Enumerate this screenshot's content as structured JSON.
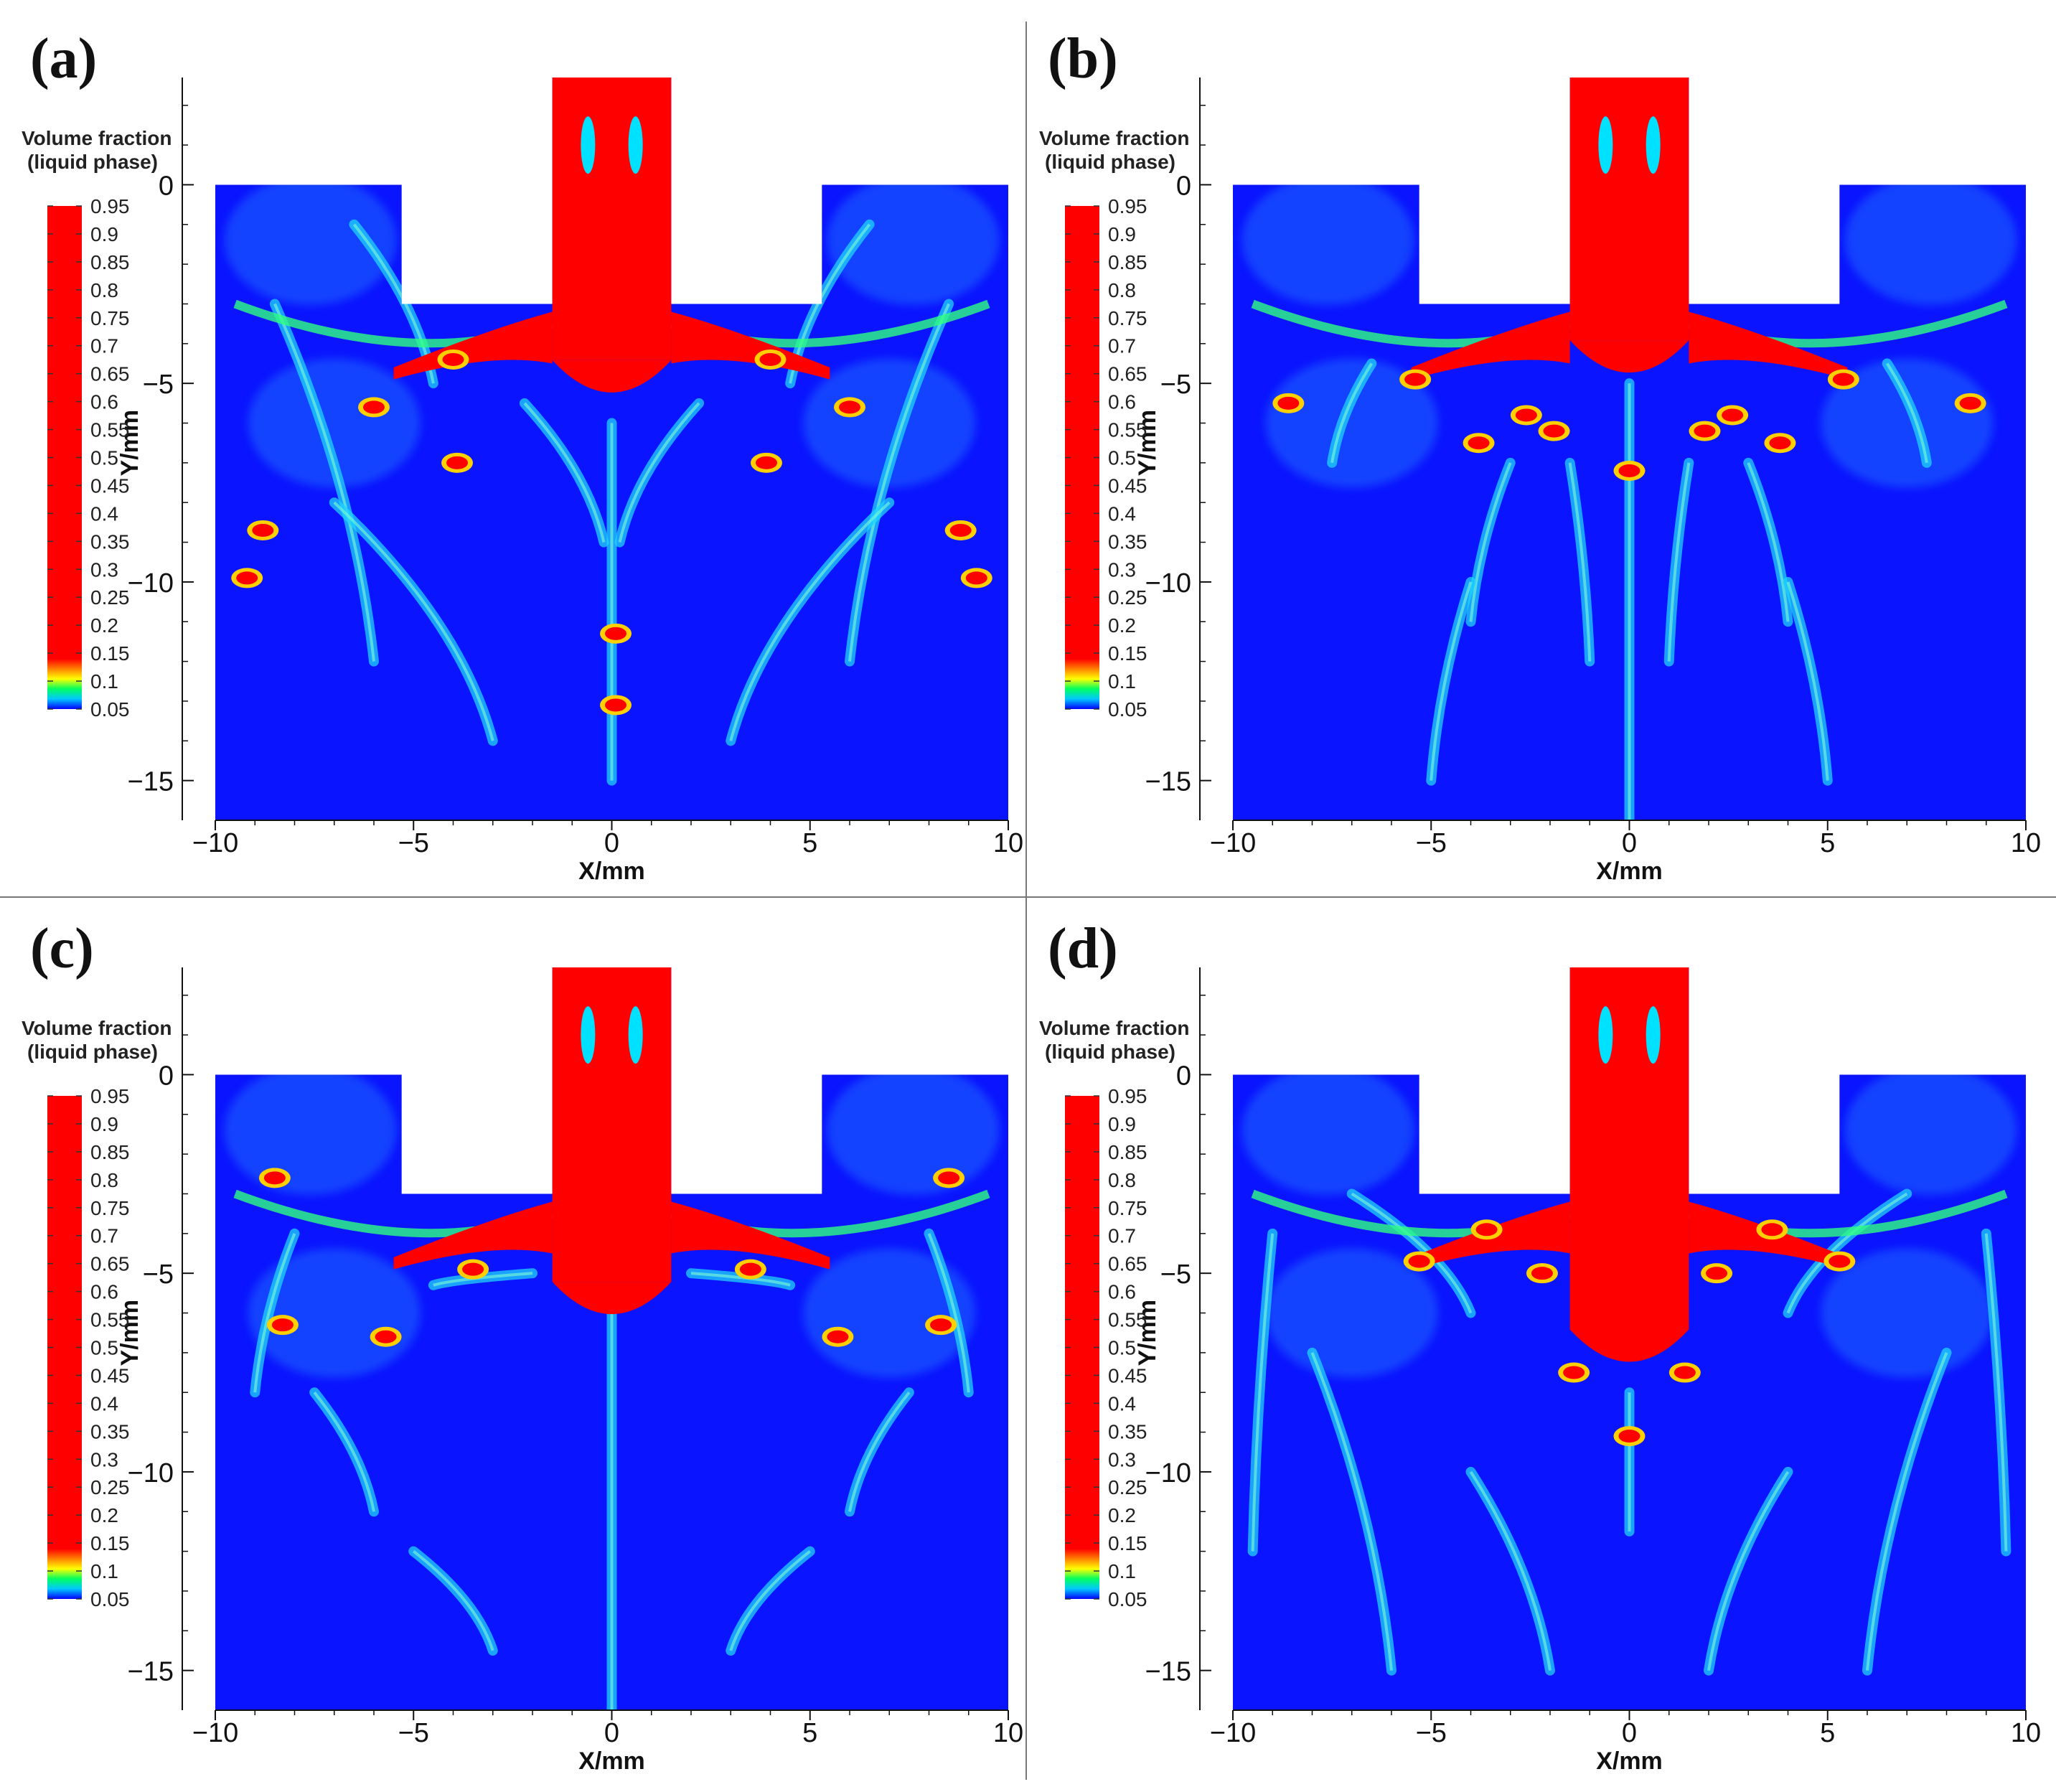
{
  "chart_data": [
    {
      "type": "heatmap",
      "panel_label": "(a)",
      "colorbar_title": [
        "Volume fraction",
        "(liquid phase)"
      ],
      "colorbar_levels": [
        "0.95",
        "0.9",
        "0.85",
        "0.8",
        "0.75",
        "0.7",
        "0.65",
        "0.6",
        "0.55",
        "0.5",
        "0.45",
        "0.4",
        "0.35",
        "0.3",
        "0.25",
        "0.2",
        "0.15",
        "0.1",
        "0.05"
      ],
      "xlabel": "X/mm",
      "ylabel": "Y/mm",
      "xlim": [
        -10,
        10
      ],
      "ylim": [
        -16,
        2.7
      ],
      "xticks": [
        "−10",
        "−5",
        "0",
        "5",
        "10"
      ],
      "yticks": [
        "0",
        "−5",
        "−10",
        "−15"
      ],
      "liquid_core": {
        "x": [
          -1.5,
          1.5
        ],
        "y_bottom": -5.5
      },
      "red_blobs": [
        [
          0.1,
          -13.1
        ],
        [
          0.1,
          -11.3
        ],
        [
          -3.9,
          -7.0
        ],
        [
          3.9,
          -7.0
        ],
        [
          -8.8,
          -8.7
        ],
        [
          8.8,
          -8.7
        ],
        [
          -9.2,
          -9.9
        ],
        [
          9.2,
          -9.9
        ],
        [
          -4.0,
          -4.4
        ],
        [
          4.0,
          -4.4
        ],
        [
          -6.0,
          -5.6
        ],
        [
          6.0,
          -5.6
        ]
      ],
      "filaments": [
        [
          -2.2,
          -5.5,
          -0.2,
          -9
        ],
        [
          2.2,
          -5.5,
          0.2,
          -9
        ],
        [
          0.0,
          -6,
          0.0,
          -15
        ],
        [
          -8.5,
          -3,
          -6,
          -12
        ],
        [
          8.5,
          -3,
          6,
          -12
        ],
        [
          -7,
          -8,
          -3,
          -14
        ],
        [
          7,
          -8,
          3,
          -14
        ],
        [
          -6.5,
          -1,
          -4.5,
          -5
        ],
        [
          6.5,
          -1,
          4.5,
          -5
        ]
      ]
    },
    {
      "type": "heatmap",
      "panel_label": "(b)",
      "colorbar_title": [
        "Volume fraction",
        "(liquid phase)"
      ],
      "colorbar_levels": [
        "0.95",
        "0.9",
        "0.85",
        "0.8",
        "0.75",
        "0.7",
        "0.65",
        "0.6",
        "0.55",
        "0.5",
        "0.45",
        "0.4",
        "0.35",
        "0.3",
        "0.25",
        "0.2",
        "0.15",
        "0.1",
        "0.05"
      ],
      "xlabel": "X/mm",
      "ylabel": "Y/mm",
      "xlim": [
        -10,
        10
      ],
      "ylim": [
        -16,
        2.7
      ],
      "xticks": [
        "−10",
        "−5",
        "0",
        "5",
        "10"
      ],
      "yticks": [
        "0",
        "−5",
        "−10",
        "−15"
      ],
      "liquid_core": {
        "x": [
          -1.5,
          1.5
        ],
        "y_bottom": -5.0
      },
      "red_blobs": [
        [
          -5.4,
          -4.9
        ],
        [
          5.4,
          -4.9
        ],
        [
          -3.8,
          -6.5
        ],
        [
          3.8,
          -6.5
        ],
        [
          -2.6,
          -5.8
        ],
        [
          2.6,
          -5.8
        ],
        [
          -8.6,
          -5.5
        ],
        [
          8.6,
          -5.5
        ],
        [
          0.0,
          -7.2
        ],
        [
          -1.9,
          -6.2
        ],
        [
          1.9,
          -6.2
        ]
      ],
      "filaments": [
        [
          0.0,
          -5,
          0.0,
          -16
        ],
        [
          -1.5,
          -7,
          -1.0,
          -12
        ],
        [
          1.5,
          -7,
          1.0,
          -12
        ],
        [
          -6.5,
          -4.5,
          -7.5,
          -7
        ],
        [
          6.5,
          -4.5,
          7.5,
          -7
        ],
        [
          -3,
          -7,
          -4,
          -11
        ],
        [
          3,
          -7,
          4,
          -11
        ],
        [
          -4,
          -10,
          -5,
          -15
        ],
        [
          4,
          -10,
          5,
          -15
        ]
      ]
    },
    {
      "type": "heatmap",
      "panel_label": "(c)",
      "colorbar_title": [
        "Volume fraction",
        "(liquid phase)"
      ],
      "colorbar_levels": [
        "0.95",
        "0.9",
        "0.85",
        "0.8",
        "0.75",
        "0.7",
        "0.65",
        "0.6",
        "0.55",
        "0.5",
        "0.45",
        "0.4",
        "0.35",
        "0.3",
        "0.25",
        "0.2",
        "0.15",
        "0.1",
        "0.05"
      ],
      "xlabel": "X/mm",
      "ylabel": "Y/mm",
      "xlim": [
        -10,
        10
      ],
      "ylim": [
        -16,
        2.7
      ],
      "xticks": [
        "−10",
        "−5",
        "0",
        "5",
        "10"
      ],
      "yticks": [
        "0",
        "−5",
        "−10",
        "−15"
      ],
      "liquid_core": {
        "x": [
          -1.5,
          1.5
        ],
        "y_bottom": -6.3
      },
      "red_blobs": [
        [
          -8.3,
          -6.3
        ],
        [
          8.3,
          -6.3
        ],
        [
          -5.7,
          -6.6
        ],
        [
          5.7,
          -6.6
        ],
        [
          -8.5,
          -2.6
        ],
        [
          8.5,
          -2.6
        ],
        [
          -3.5,
          -4.9
        ],
        [
          3.5,
          -4.9
        ]
      ],
      "filaments": [
        [
          -2,
          -5,
          -4.5,
          -5.3
        ],
        [
          2,
          -5,
          4.5,
          -5.3
        ],
        [
          0.0,
          -6,
          0.0,
          -16
        ],
        [
          -7.5,
          -8,
          -6.0,
          -11
        ],
        [
          7.5,
          -8,
          6.0,
          -11
        ],
        [
          -5,
          -12,
          -3,
          -14.5
        ],
        [
          5,
          -12,
          3,
          -14.5
        ],
        [
          -8,
          -4,
          -9,
          -8
        ],
        [
          8,
          -4,
          9,
          -8
        ]
      ]
    },
    {
      "type": "heatmap",
      "panel_label": "(d)",
      "colorbar_title": [
        "Volume fraction",
        "(liquid phase)"
      ],
      "colorbar_levels": [
        "0.95",
        "0.9",
        "0.85",
        "0.8",
        "0.75",
        "0.7",
        "0.65",
        "0.6",
        "0.55",
        "0.5",
        "0.45",
        "0.4",
        "0.35",
        "0.3",
        "0.25",
        "0.2",
        "0.15",
        "0.1",
        "0.05"
      ],
      "xlabel": "X/mm",
      "ylabel": "Y/mm",
      "xlim": [
        -10,
        10
      ],
      "ylim": [
        -16,
        2.7
      ],
      "xticks": [
        "−10",
        "−5",
        "0",
        "5",
        "10"
      ],
      "yticks": [
        "0",
        "−5",
        "−10",
        "−15"
      ],
      "liquid_core": {
        "x": [
          -1.5,
          1.5
        ],
        "y_bottom": -7.5
      },
      "red_blobs": [
        [
          0.0,
          -9.1
        ],
        [
          -3.6,
          -3.9
        ],
        [
          3.6,
          -3.9
        ],
        [
          -5.3,
          -4.7
        ],
        [
          5.3,
          -4.7
        ],
        [
          -1.4,
          -7.5
        ],
        [
          1.4,
          -7.5
        ],
        [
          -2.2,
          -5.0
        ],
        [
          2.2,
          -5.0
        ]
      ],
      "filaments": [
        [
          0.0,
          -8,
          0.0,
          -11.5
        ],
        [
          -7,
          -3,
          -4,
          -6
        ],
        [
          7,
          -3,
          4,
          -6
        ],
        [
          -8,
          -7,
          -6,
          -15
        ],
        [
          8,
          -7,
          6,
          -15
        ],
        [
          -4,
          -10,
          -2,
          -15
        ],
        [
          4,
          -10,
          2,
          -15
        ],
        [
          -9,
          -4,
          -9.5,
          -12
        ],
        [
          9,
          -4,
          9.5,
          -12
        ]
      ]
    }
  ]
}
